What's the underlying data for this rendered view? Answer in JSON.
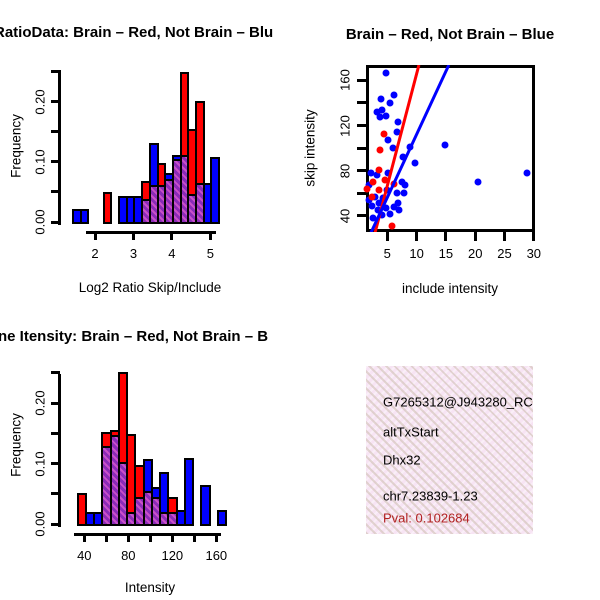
{
  "colors": {
    "red": "#FF0000",
    "blue": "#0000FF",
    "overlap_purple": "#8B2BB8",
    "overlap_stripe": "#C94FC9",
    "info_box_bg": "#F7E4F4",
    "info_box_dots": "#CDBEAF",
    "pval_red": "#B22222",
    "axis_black": "#000000"
  },
  "chart_data": [
    {
      "id": "ratio_hist",
      "type": "bar",
      "variant": "overlaid-histogram",
      "title": "RatioData: Brain – Red, Not Brain – Blu",
      "xlabel": "Log2 Ratio Skip/Include",
      "ylabel": "Frequency",
      "legend": "Brain = red, Not Brain = blue, overlap = purple hatch",
      "xlim": [
        1.09,
        5.64
      ],
      "ylim": [
        0,
        0.2533
      ],
      "xticks": [
        {
          "v": 2,
          "label": "2"
        },
        {
          "v": 3,
          "label": "3"
        },
        {
          "v": 4,
          "label": "4"
        },
        {
          "v": 5,
          "label": "5"
        }
      ],
      "yticks": [
        {
          "v": 0,
          "label": "0.00"
        },
        {
          "v": 0.05,
          "label": ""
        },
        {
          "v": 0.1,
          "label": "0.10"
        },
        {
          "v": 0.15,
          "label": ""
        },
        {
          "v": 0.2,
          "label": "0.20"
        },
        {
          "v": 0.25,
          "label": ""
        }
      ],
      "bars": [
        {
          "x0": 1.4,
          "x1": 1.6,
          "color": "blue",
          "freq": 0.021,
          "overlap": 0
        },
        {
          "x0": 1.6,
          "x1": 1.8,
          "color": "blue",
          "freq": 0.021,
          "overlap": 0
        },
        {
          "x0": 2.2,
          "x1": 2.4,
          "color": "red",
          "freq": 0.05,
          "overlap": 0
        },
        {
          "x0": 2.6,
          "x1": 2.8,
          "color": "blue",
          "freq": 0.044,
          "overlap": 0
        },
        {
          "x0": 2.8,
          "x1": 3.0,
          "color": "blue",
          "freq": 0.044,
          "overlap": 0
        },
        {
          "x0": 3.0,
          "x1": 3.2,
          "color": "blue",
          "freq": 0.044,
          "overlap": 0
        },
        {
          "x0": 3.2,
          "x1": 3.4,
          "color": "red",
          "freq": 0.068,
          "overlap": 0.039
        },
        {
          "x0": 3.4,
          "x1": 3.6,
          "color": "blue",
          "freq": 0.132,
          "overlap": 0.061
        },
        {
          "x0": 3.6,
          "x1": 3.8,
          "color": "red",
          "freq": 0.099,
          "overlap": 0.061
        },
        {
          "x0": 3.8,
          "x1": 4.0,
          "color": "blue",
          "freq": 0.081,
          "overlap": 0.071
        },
        {
          "x0": 4.0,
          "x1": 4.2,
          "color": "blue",
          "freq": 0.112,
          "overlap": 0.105
        },
        {
          "x0": 4.2,
          "x1": 4.4,
          "color": "red",
          "freq": 0.25,
          "overlap": 0.112
        },
        {
          "x0": 4.4,
          "x1": 4.6,
          "color": "red",
          "freq": 0.155,
          "overlap": 0.047
        },
        {
          "x0": 4.6,
          "x1": 4.8,
          "color": "red",
          "freq": 0.202,
          "overlap": 0.065
        },
        {
          "x0": 4.8,
          "x1": 5.0,
          "color": "blue",
          "freq": 0.065,
          "overlap": 0
        },
        {
          "x0": 5.0,
          "x1": 5.2,
          "color": "blue",
          "freq": 0.108,
          "overlap": 0
        }
      ]
    },
    {
      "id": "scatter",
      "type": "scatter",
      "title": "Brain – Red, Not Brain – Blue",
      "xlabel": "include intensity",
      "ylabel": "skip intensity",
      "legend": "Brain = red, Not Brain = blue",
      "xlim": [
        1.37,
        30.2
      ],
      "ylim": [
        25.8,
        173.6
      ],
      "xticks": [
        {
          "v": 5,
          "label": "5"
        },
        {
          "v": 10,
          "label": "10"
        },
        {
          "v": 15,
          "label": "15"
        },
        {
          "v": 20,
          "label": "20"
        },
        {
          "v": 25,
          "label": "25"
        },
        {
          "v": 30,
          "label": "30"
        }
      ],
      "yticks": [
        {
          "v": 40,
          "label": "40"
        },
        {
          "v": 60,
          "label": ""
        },
        {
          "v": 80,
          "label": "80"
        },
        {
          "v": 100,
          "label": ""
        },
        {
          "v": 120,
          "label": "120"
        },
        {
          "v": 140,
          "label": ""
        },
        {
          "v": 160,
          "label": "160"
        }
      ],
      "blue_points": [
        [
          4.7,
          166.3
        ],
        [
          3.9,
          143.3
        ],
        [
          6.2,
          147.1
        ],
        [
          5.5,
          139.7
        ],
        [
          3.2,
          132.0
        ],
        [
          4.1,
          133.8
        ],
        [
          3.8,
          127.6
        ],
        [
          4.8,
          128.5
        ],
        [
          6.9,
          123.5
        ],
        [
          6.7,
          114.6
        ],
        [
          5.2,
          107.3
        ],
        [
          6.0,
          99.9
        ],
        [
          7.7,
          92.5
        ],
        [
          8.9,
          101.3
        ],
        [
          9.7,
          86.6
        ],
        [
          14.8,
          102.8
        ],
        [
          20.5,
          70.4
        ],
        [
          28.8,
          78.3
        ],
        [
          2.2,
          78.3
        ],
        [
          3.2,
          76.3
        ],
        [
          1.9,
          67.4
        ],
        [
          2.9,
          57.1
        ],
        [
          1.9,
          54.2
        ],
        [
          4.3,
          55.7
        ],
        [
          3.6,
          51.2
        ],
        [
          5.2,
          78.3
        ],
        [
          4.9,
          63.0
        ],
        [
          6.6,
          60.1
        ],
        [
          7.5,
          70.4
        ],
        [
          8.0,
          67.4
        ],
        [
          7.9,
          60.1
        ],
        [
          6.9,
          51.2
        ],
        [
          2.4,
          48.9
        ],
        [
          3.4,
          45.3
        ],
        [
          4.8,
          47.1
        ],
        [
          6.1,
          48.0
        ],
        [
          4.1,
          40.9
        ],
        [
          2.6,
          38.2
        ],
        [
          5.5,
          41.8
        ],
        [
          7.0,
          45.3
        ]
      ],
      "red_points": [
        [
          4.4,
          112.6
        ],
        [
          3.7,
          98.4
        ],
        [
          3.6,
          80.7
        ],
        [
          2.6,
          70.1
        ],
        [
          4.6,
          71.9
        ],
        [
          1.5,
          63.9
        ],
        [
          3.6,
          63.0
        ],
        [
          6.1,
          68.3
        ],
        [
          2.4,
          56.8
        ],
        [
          5.8,
          31.2
        ]
      ],
      "red_line": {
        "x0": 2.9,
        "y0": 25.0,
        "x1": 10.4,
        "y1": 173.6
      },
      "blue_line": {
        "x0": 2.2,
        "y0": 25.0,
        "x1": 15.5,
        "y1": 173.6
      }
    },
    {
      "id": "int_hist",
      "type": "bar",
      "variant": "overlaid-histogram",
      "title": "ne Itensity: Brain – Red, Not Brain – B",
      "xlabel": "Intensity",
      "ylabel": "Frequency",
      "legend": "Brain = red, Not Brain = blue, overlap = purple hatch",
      "xlim": [
        17.9,
        170.6
      ],
      "ylim": [
        0,
        0.2483
      ],
      "xticks": [
        {
          "v": 40,
          "label": "40"
        },
        {
          "v": 60,
          "label": ""
        },
        {
          "v": 80,
          "label": "80"
        },
        {
          "v": 100,
          "label": ""
        },
        {
          "v": 120,
          "label": "120"
        },
        {
          "v": 140,
          "label": ""
        },
        {
          "v": 160,
          "label": "160"
        }
      ],
      "yticks": [
        {
          "v": 0,
          "label": "0.00"
        },
        {
          "v": 0.05,
          "label": ""
        },
        {
          "v": 0.1,
          "label": "0.10"
        },
        {
          "v": 0.15,
          "label": ""
        },
        {
          "v": 0.2,
          "label": "0.20"
        },
        {
          "v": 0.25,
          "label": ""
        }
      ],
      "bars": [
        {
          "x0": 33,
          "x1": 40.5,
          "color": "red",
          "freq": 0.051,
          "overlap": 0
        },
        {
          "x0": 40.5,
          "x1": 48,
          "color": "blue",
          "freq": 0.02,
          "overlap": 0
        },
        {
          "x0": 48,
          "x1": 55.5,
          "color": "blue",
          "freq": 0.02,
          "overlap": 0
        },
        {
          "x0": 55.5,
          "x1": 63,
          "color": "red",
          "freq": 0.152,
          "overlap": 0.129
        },
        {
          "x0": 63,
          "x1": 70.5,
          "color": "red",
          "freq": 0.155,
          "overlap": 0.148
        },
        {
          "x0": 70.5,
          "x1": 78,
          "color": "red",
          "freq": 0.252,
          "overlap": 0.103
        },
        {
          "x0": 78,
          "x1": 85.5,
          "color": "red",
          "freq": 0.149,
          "overlap": 0.02
        },
        {
          "x0": 85.5,
          "x1": 93,
          "color": "red",
          "freq": 0.097,
          "overlap": 0.044
        },
        {
          "x0": 93,
          "x1": 100.5,
          "color": "blue",
          "freq": 0.107,
          "overlap": 0.055
        },
        {
          "x0": 100.5,
          "x1": 108,
          "color": "blue",
          "freq": 0.061,
          "overlap": 0.044
        },
        {
          "x0": 108,
          "x1": 115.5,
          "color": "blue",
          "freq": 0.086,
          "overlap": 0.02
        },
        {
          "x0": 115.5,
          "x1": 123,
          "color": "red",
          "freq": 0.045,
          "overlap": 0.02
        },
        {
          "x0": 123,
          "x1": 130.5,
          "color": "blue",
          "freq": 0.023,
          "overlap": 0
        },
        {
          "x0": 130.5,
          "x1": 138,
          "color": "blue",
          "freq": 0.109,
          "overlap": 0
        },
        {
          "x0": 145.5,
          "x1": 153,
          "color": "blue",
          "freq": 0.064,
          "overlap": 0
        },
        {
          "x0": 160.5,
          "x1": 168,
          "color": "blue",
          "freq": 0.023,
          "overlap": 0
        }
      ]
    }
  ],
  "info_box": {
    "lines": [
      {
        "text": "G7265312@J943280_RC",
        "color": "black"
      },
      {
        "text": "altTxStart",
        "color": "black"
      },
      {
        "text": "Dhx32",
        "color": "black"
      },
      {
        "text": "chr7.23839-1.23",
        "color": "black"
      },
      {
        "text": "Pval: 0.102684",
        "color": "pval_red"
      }
    ]
  }
}
